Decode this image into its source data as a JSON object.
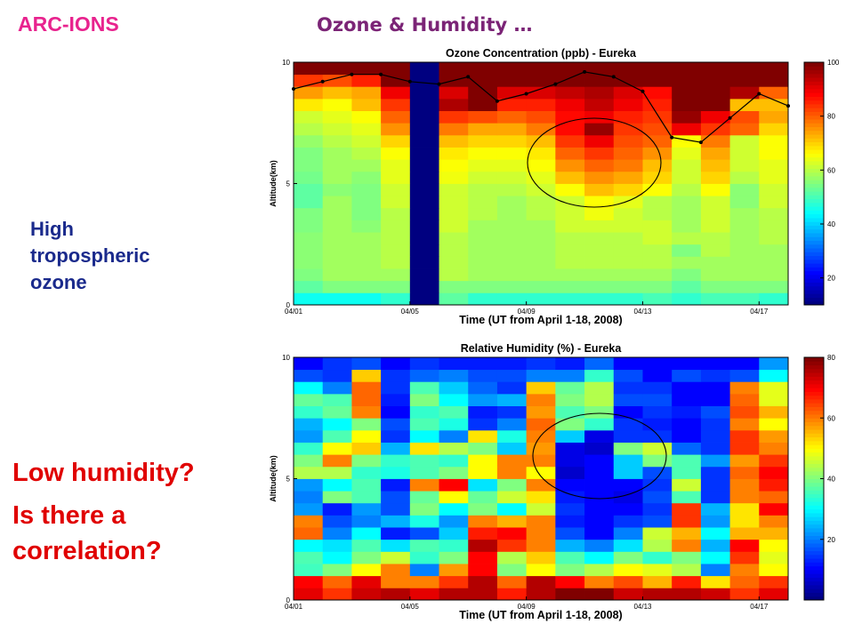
{
  "slide": {
    "brand": "ARC-IONS",
    "title": "Ozone & Humidity …",
    "annotation_ozone": [
      "High",
      "tropospheric",
      "ozone"
    ],
    "annotation_humidity": [
      "Low humidity?",
      "Is there a",
      "correlation?"
    ]
  },
  "colors": {
    "brand": "#e8238e",
    "title": "#7b2476",
    "annotation_ozone": "#1a2a8c",
    "annotation_humidity": "#e00000",
    "colormap": "jet"
  },
  "chart_data": [
    {
      "type": "heatmap",
      "title": "Ozone Concentration (ppb) - Eureka",
      "xlabel": "Time (UT from April 1-18, 2008)",
      "ylabel": "Altitude(km)",
      "x_ticks": [
        "04/01",
        "04/05",
        "04/09",
        "04/13",
        "04/17"
      ],
      "y_ticks": [
        "0",
        "5",
        "10"
      ],
      "ylim": [
        0,
        10
      ],
      "colorbar": {
        "ticks": [
          "20",
          "40",
          "60",
          "80",
          "100"
        ],
        "range": [
          10,
          100
        ]
      },
      "columns": 17,
      "row_altitudes_km": [
        0.25,
        0.75,
        1.25,
        1.75,
        2.25,
        2.75,
        3.25,
        3.75,
        4.25,
        4.75,
        5.25,
        5.75,
        6.25,
        6.75,
        7.25,
        7.75,
        8.25,
        8.75,
        9.25,
        9.75
      ],
      "values": [
        [
          45,
          45,
          45,
          48,
          5,
          52,
          48,
          48,
          48,
          48,
          48,
          48,
          50,
          48,
          50,
          50,
          48
        ],
        [
          52,
          55,
          55,
          55,
          5,
          55,
          55,
          55,
          55,
          55,
          55,
          55,
          55,
          52,
          55,
          55,
          55
        ],
        [
          55,
          58,
          58,
          58,
          5,
          60,
          58,
          58,
          58,
          58,
          58,
          58,
          58,
          55,
          58,
          58,
          58
        ],
        [
          56,
          58,
          58,
          60,
          5,
          60,
          58,
          58,
          58,
          60,
          60,
          60,
          60,
          58,
          58,
          58,
          58
        ],
        [
          56,
          58,
          58,
          60,
          5,
          60,
          58,
          58,
          58,
          60,
          60,
          60,
          60,
          55,
          60,
          58,
          58
        ],
        [
          56,
          58,
          58,
          60,
          5,
          60,
          58,
          58,
          58,
          60,
          60,
          60,
          62,
          60,
          60,
          58,
          60
        ],
        [
          55,
          58,
          56,
          60,
          5,
          62,
          58,
          58,
          58,
          62,
          62,
          62,
          62,
          58,
          62,
          58,
          60
        ],
        [
          55,
          58,
          55,
          60,
          5,
          62,
          60,
          58,
          60,
          62,
          65,
          62,
          60,
          58,
          62,
          58,
          60
        ],
        [
          52,
          58,
          55,
          62,
          5,
          62,
          60,
          58,
          60,
          62,
          66,
          64,
          60,
          58,
          62,
          56,
          62
        ],
        [
          52,
          56,
          55,
          62,
          5,
          62,
          60,
          60,
          62,
          66,
          72,
          70,
          66,
          60,
          66,
          56,
          62
        ],
        [
          54,
          58,
          56,
          64,
          5,
          65,
          62,
          62,
          64,
          72,
          76,
          74,
          70,
          62,
          70,
          60,
          64
        ],
        [
          55,
          58,
          58,
          64,
          5,
          66,
          64,
          64,
          66,
          76,
          80,
          78,
          72,
          62,
          72,
          62,
          64
        ],
        [
          55,
          58,
          60,
          66,
          5,
          68,
          66,
          66,
          68,
          80,
          84,
          80,
          76,
          64,
          74,
          62,
          66
        ],
        [
          57,
          60,
          62,
          70,
          5,
          72,
          70,
          70,
          72,
          84,
          90,
          82,
          80,
          66,
          78,
          62,
          66
        ],
        [
          60,
          62,
          64,
          76,
          5,
          78,
          74,
          74,
          78,
          88,
          98,
          84,
          82,
          90,
          84,
          80,
          70
        ],
        [
          62,
          64,
          66,
          80,
          5,
          84,
          82,
          80,
          82,
          88,
          90,
          86,
          84,
          98,
          90,
          82,
          74
        ],
        [
          68,
          66,
          72,
          84,
          5,
          96,
          100,
          86,
          86,
          90,
          94,
          90,
          86,
          100,
          100,
          72,
          72
        ],
        [
          75,
          72,
          74,
          90,
          5,
          92,
          100,
          92,
          92,
          94,
          96,
          92,
          88,
          100,
          100,
          96,
          80
        ],
        [
          84,
          82,
          86,
          100,
          5,
          100,
          100,
          100,
          100,
          100,
          100,
          100,
          100,
          100,
          100,
          100,
          100
        ],
        [
          100,
          100,
          100,
          100,
          5,
          100,
          100,
          100,
          100,
          100,
          100,
          100,
          100,
          100,
          100,
          100,
          100
        ]
      ],
      "overlay_line": {
        "x_index": [
          0,
          1,
          2,
          3,
          4,
          5,
          6,
          7,
          8,
          9,
          10,
          11,
          12,
          13,
          14,
          15,
          16,
          17
        ],
        "altitude_km": [
          8.9,
          9.2,
          9.5,
          9.5,
          9.2,
          9.1,
          9.4,
          8.4,
          8.7,
          9.1,
          9.6,
          9.4,
          8.8,
          6.9,
          6.7,
          7.7,
          8.7,
          8.2
        ]
      },
      "circle_annotation": true
    },
    {
      "type": "heatmap",
      "title": "Relative Humidity (%) - Eureka",
      "xlabel": "Time (UT from April 1-18, 2008)",
      "ylabel": "Altitude(km)",
      "x_ticks": [
        "04/01",
        "04/05",
        "04/09",
        "04/13",
        "04/17"
      ],
      "y_ticks": [
        "0",
        "5",
        "10"
      ],
      "ylim": [
        0,
        10
      ],
      "colorbar": {
        "ticks": [
          "20",
          "40",
          "60",
          "80"
        ],
        "range": [
          0,
          80
        ]
      },
      "columns": 17,
      "row_altitudes_km": [
        0.25,
        0.75,
        1.25,
        1.75,
        2.25,
        2.75,
        3.25,
        3.75,
        4.25,
        4.75,
        5.25,
        5.75,
        6.25,
        6.75,
        7.25,
        7.75,
        8.25,
        8.75,
        9.25,
        9.75
      ],
      "values": [
        [
          72,
          66,
          74,
          76,
          72,
          76,
          76,
          68,
          76,
          80,
          80,
          74,
          76,
          76,
          74,
          66,
          72
        ],
        [
          70,
          62,
          72,
          60,
          60,
          66,
          76,
          62,
          76,
          70,
          60,
          64,
          56,
          68,
          52,
          62,
          66
        ],
        [
          35,
          40,
          50,
          60,
          20,
          58,
          70,
          40,
          50,
          40,
          44,
          50,
          48,
          44,
          20,
          60,
          50
        ],
        [
          36,
          30,
          40,
          46,
          34,
          40,
          70,
          44,
          54,
          36,
          30,
          40,
          34,
          40,
          30,
          66,
          48
        ],
        [
          30,
          28,
          36,
          28,
          36,
          34,
          76,
          66,
          60,
          24,
          20,
          28,
          44,
          60,
          24,
          70,
          50
        ],
        [
          62,
          20,
          30,
          12,
          16,
          26,
          68,
          70,
          60,
          16,
          10,
          20,
          46,
          56,
          30,
          56,
          56
        ],
        [
          60,
          16,
          20,
          24,
          32,
          22,
          60,
          56,
          60,
          12,
          10,
          14,
          16,
          66,
          22,
          52,
          60
        ],
        [
          22,
          12,
          22,
          16,
          40,
          30,
          40,
          30,
          46,
          14,
          10,
          10,
          14,
          66,
          24,
          52,
          70
        ],
        [
          20,
          40,
          36,
          16,
          38,
          50,
          38,
          46,
          52,
          12,
          10,
          8,
          16,
          36,
          14,
          60,
          62
        ],
        [
          22,
          30,
          36,
          12,
          60,
          70,
          28,
          40,
          60,
          10,
          10,
          10,
          14,
          46,
          14,
          60,
          68
        ],
        [
          44,
          44,
          34,
          32,
          36,
          40,
          50,
          60,
          50,
          6,
          10,
          26,
          16,
          36,
          14,
          62,
          70
        ],
        [
          40,
          60,
          40,
          34,
          36,
          34,
          50,
          60,
          60,
          8,
          10,
          26,
          40,
          36,
          22,
          58,
          66
        ],
        [
          34,
          50,
          54,
          24,
          52,
          44,
          40,
          26,
          58,
          8,
          6,
          40,
          46,
          18,
          14,
          66,
          60
        ],
        [
          22,
          36,
          50,
          14,
          30,
          20,
          52,
          32,
          60,
          26,
          8,
          14,
          14,
          10,
          14,
          66,
          58
        ],
        [
          24,
          30,
          40,
          16,
          36,
          32,
          14,
          20,
          62,
          40,
          34,
          14,
          12,
          10,
          14,
          60,
          50
        ],
        [
          34,
          38,
          60,
          10,
          34,
          36,
          12,
          14,
          58,
          36,
          40,
          10,
          14,
          12,
          16,
          64,
          56
        ],
        [
          38,
          36,
          62,
          12,
          40,
          30,
          22,
          24,
          60,
          40,
          44,
          16,
          16,
          10,
          10,
          62,
          48
        ],
        [
          30,
          20,
          62,
          14,
          36,
          26,
          18,
          14,
          54,
          38,
          44,
          14,
          14,
          10,
          10,
          60,
          48
        ],
        [
          16,
          14,
          54,
          14,
          18,
          20,
          16,
          16,
          20,
          20,
          34,
          16,
          10,
          16,
          14,
          16,
          30
        ],
        [
          10,
          14,
          16,
          10,
          14,
          12,
          12,
          12,
          14,
          12,
          18,
          10,
          10,
          10,
          10,
          10,
          22
        ]
      ],
      "circle_annotation": true
    }
  ]
}
